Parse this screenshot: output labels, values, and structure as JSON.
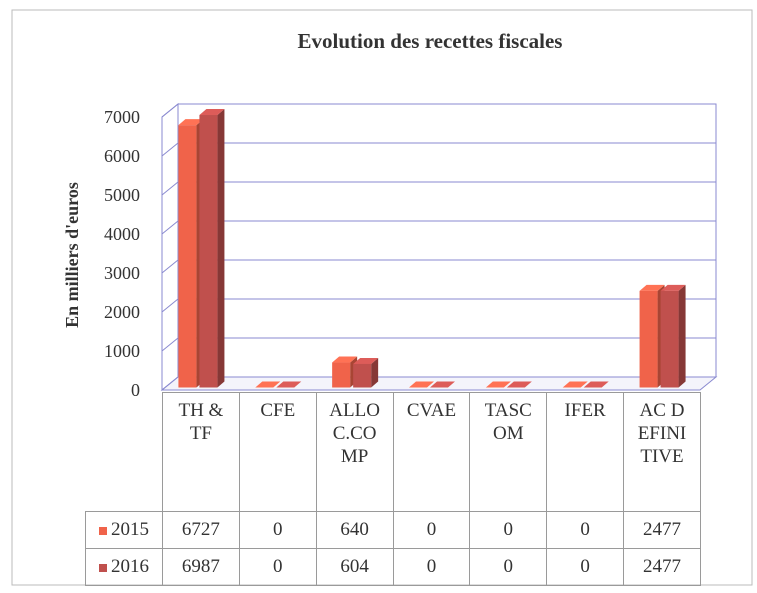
{
  "chart_data": {
    "type": "bar3d",
    "title": "Evolution des recettes fiscales",
    "ylabel": "En milliers d'euros",
    "categories": [
      "TH & TF",
      "CFE",
      "ALLOC.COMP",
      "CVAE",
      "TASCOM",
      "IFER",
      "AC DEFINITIVE"
    ],
    "series": [
      {
        "name": "2015",
        "color": "#f0634a",
        "values": [
          6727,
          0,
          640,
          0,
          0,
          0,
          2477
        ]
      },
      {
        "name": "2016",
        "color": "#c0504d",
        "values": [
          6987,
          0,
          604,
          0,
          0,
          0,
          2477
        ]
      }
    ],
    "ylim": [
      0,
      7000
    ],
    "yticks": [
      0,
      1000,
      2000,
      3000,
      4000,
      5000,
      6000,
      7000
    ],
    "grid": true,
    "data_table": true
  }
}
